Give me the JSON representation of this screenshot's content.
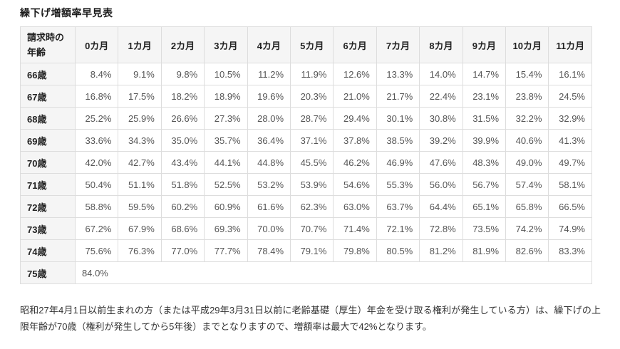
{
  "title": "繰下げ増額率早見表",
  "table": {
    "corner_header": "請求時の年齢",
    "columns": [
      "0カ月",
      "1カ月",
      "2カ月",
      "3カ月",
      "4カ月",
      "5カ月",
      "6カ月",
      "7カ月",
      "8カ月",
      "9カ月",
      "10カ月",
      "11カ月"
    ],
    "rows": [
      {
        "age": "66歳",
        "values": [
          "8.4%",
          "9.1%",
          "9.8%",
          "10.5%",
          "11.2%",
          "11.9%",
          "12.6%",
          "13.3%",
          "14.0%",
          "14.7%",
          "15.4%",
          "16.1%"
        ]
      },
      {
        "age": "67歳",
        "values": [
          "16.8%",
          "17.5%",
          "18.2%",
          "18.9%",
          "19.6%",
          "20.3%",
          "21.0%",
          "21.7%",
          "22.4%",
          "23.1%",
          "23.8%",
          "24.5%"
        ]
      },
      {
        "age": "68歳",
        "values": [
          "25.2%",
          "25.9%",
          "26.6%",
          "27.3%",
          "28.0%",
          "28.7%",
          "29.4%",
          "30.1%",
          "30.8%",
          "31.5%",
          "32.2%",
          "32.9%"
        ]
      },
      {
        "age": "69歳",
        "values": [
          "33.6%",
          "34.3%",
          "35.0%",
          "35.7%",
          "36.4%",
          "37.1%",
          "37.8%",
          "38.5%",
          "39.2%",
          "39.9%",
          "40.6%",
          "41.3%"
        ]
      },
      {
        "age": "70歳",
        "values": [
          "42.0%",
          "42.7%",
          "43.4%",
          "44.1%",
          "44.8%",
          "45.5%",
          "46.2%",
          "46.9%",
          "47.6%",
          "48.3%",
          "49.0%",
          "49.7%"
        ]
      },
      {
        "age": "71歳",
        "values": [
          "50.4%",
          "51.1%",
          "51.8%",
          "52.5%",
          "53.2%",
          "53.9%",
          "54.6%",
          "55.3%",
          "56.0%",
          "56.7%",
          "57.4%",
          "58.1%"
        ]
      },
      {
        "age": "72歳",
        "values": [
          "58.8%",
          "59.5%",
          "60.2%",
          "60.9%",
          "61.6%",
          "62.3%",
          "63.0%",
          "63.7%",
          "64.4%",
          "65.1%",
          "65.8%",
          "66.5%"
        ]
      },
      {
        "age": "73歳",
        "values": [
          "67.2%",
          "67.9%",
          "68.6%",
          "69.3%",
          "70.0%",
          "70.7%",
          "71.4%",
          "72.1%",
          "72.8%",
          "73.5%",
          "74.2%",
          "74.9%"
        ]
      },
      {
        "age": "74歳",
        "values": [
          "75.6%",
          "76.3%",
          "77.0%",
          "77.7%",
          "78.4%",
          "79.1%",
          "79.8%",
          "80.5%",
          "81.2%",
          "81.9%",
          "82.6%",
          "83.3%"
        ]
      },
      {
        "age": "75歳",
        "values": [
          "84.0%"
        ],
        "colspan": 12
      }
    ]
  },
  "note": "昭和27年4月1日以前生まれの方（または平成29年3月31日以前に老齢基礎（厚生）年金を受け取る権利が発生している方）は、繰下げの上限年齢が70歳（権利が発生してから5年後）までとなりますので、増額率は最大で42%となります。",
  "colors": {
    "header_bg": "#f5f5f5",
    "border": "#dddddd",
    "header_text": "#222222",
    "cell_text": "#555555",
    "note_text": "#333333"
  }
}
